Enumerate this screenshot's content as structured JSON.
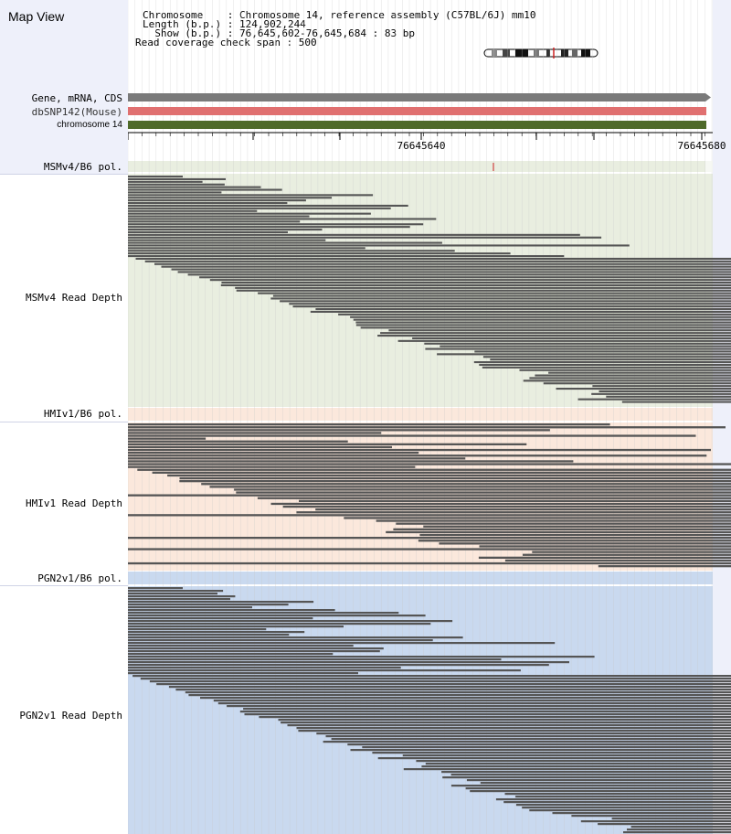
{
  "view_title": "Map View",
  "info": [
    "Chromosome    : Chromosome 14, reference assembly (C57BL/6J) mm10",
    "Length (b.p.) : 124,902,244",
    "  Show (b.p.) : 76,645,602-76,645,684 : 83 bp",
    "Read coverage check span : 500"
  ],
  "annotation_tracks": [
    {
      "label": "Gene, mRNA, CDS",
      "color": "#7a7a7a"
    },
    {
      "label": "dbSNP142(Mouse)",
      "color": "#e07070"
    },
    {
      "label": "chromosome 14",
      "color": "#4f6a2a"
    }
  ],
  "ruler_ticks": [
    "76645640",
    "76645680"
  ],
  "strain_tracks": [
    {
      "pol_label": "MSMv4/B6 pol.",
      "depth_label": "MSMv4 Read Depth",
      "bg_color": "#e9eee0"
    },
    {
      "pol_label": "HMIv1/B6 pol.",
      "depth_label": "HMIv1 Read Depth",
      "bg_color": "#fbe8dc"
    },
    {
      "pol_label": "PGN2v1/B6 pol.",
      "depth_label": "PGN2v1 Read Depth",
      "bg_color": "#c9d9ef"
    }
  ],
  "colors": {
    "read": "#555555",
    "panel_left": "#eef0fa",
    "grid": "#c8c8c8",
    "snp_marker": "#cc2222"
  }
}
